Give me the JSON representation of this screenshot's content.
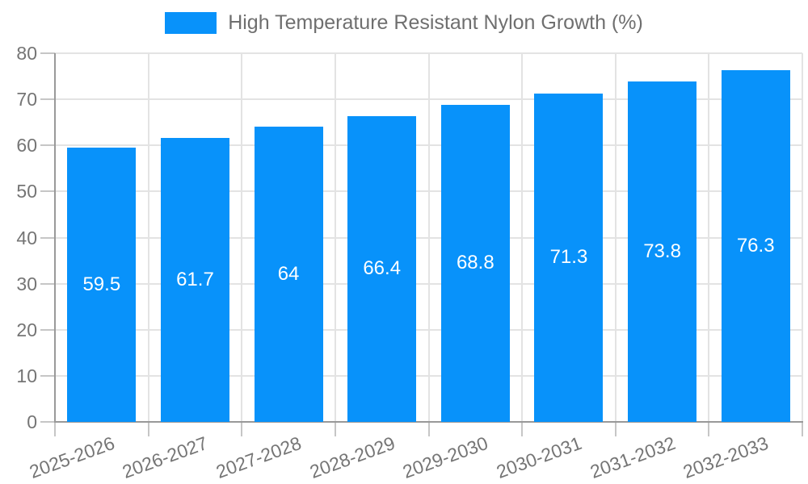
{
  "chart_data": {
    "type": "bar",
    "title": "",
    "legend": {
      "label": "High Temperature Resistant Nylon Growth (%)",
      "position": "top-center"
    },
    "categories": [
      "2025-2026",
      "2026-2027",
      "2027-2028",
      "2028-2029",
      "2029-2030",
      "2030-2031",
      "2031-2032",
      "2032-2033"
    ],
    "series": [
      {
        "name": "High Temperature Resistant Nylon Growth (%)",
        "values": [
          59.5,
          61.7,
          64,
          66.4,
          68.8,
          71.3,
          73.8,
          76.3
        ]
      }
    ],
    "value_labels": [
      "59.5",
      "61.7",
      "64",
      "66.4",
      "68.8",
      "71.3",
      "73.8",
      "76.3"
    ],
    "xlabel": "",
    "ylabel": "",
    "ylim": [
      0,
      80
    ],
    "yticks": [
      0,
      10,
      20,
      30,
      40,
      50,
      60,
      70,
      80
    ],
    "grid": true,
    "x_label_rotation_deg": -20,
    "colors": {
      "bar": "#0892FA",
      "value_label": "#ffffff",
      "axis_text": "#757575",
      "legend_text": "#6f6f6f",
      "grid_line": "#e3e3e3",
      "tick": "#c6c6c6",
      "axis_line": "#999999",
      "background": "#ffffff"
    }
  }
}
